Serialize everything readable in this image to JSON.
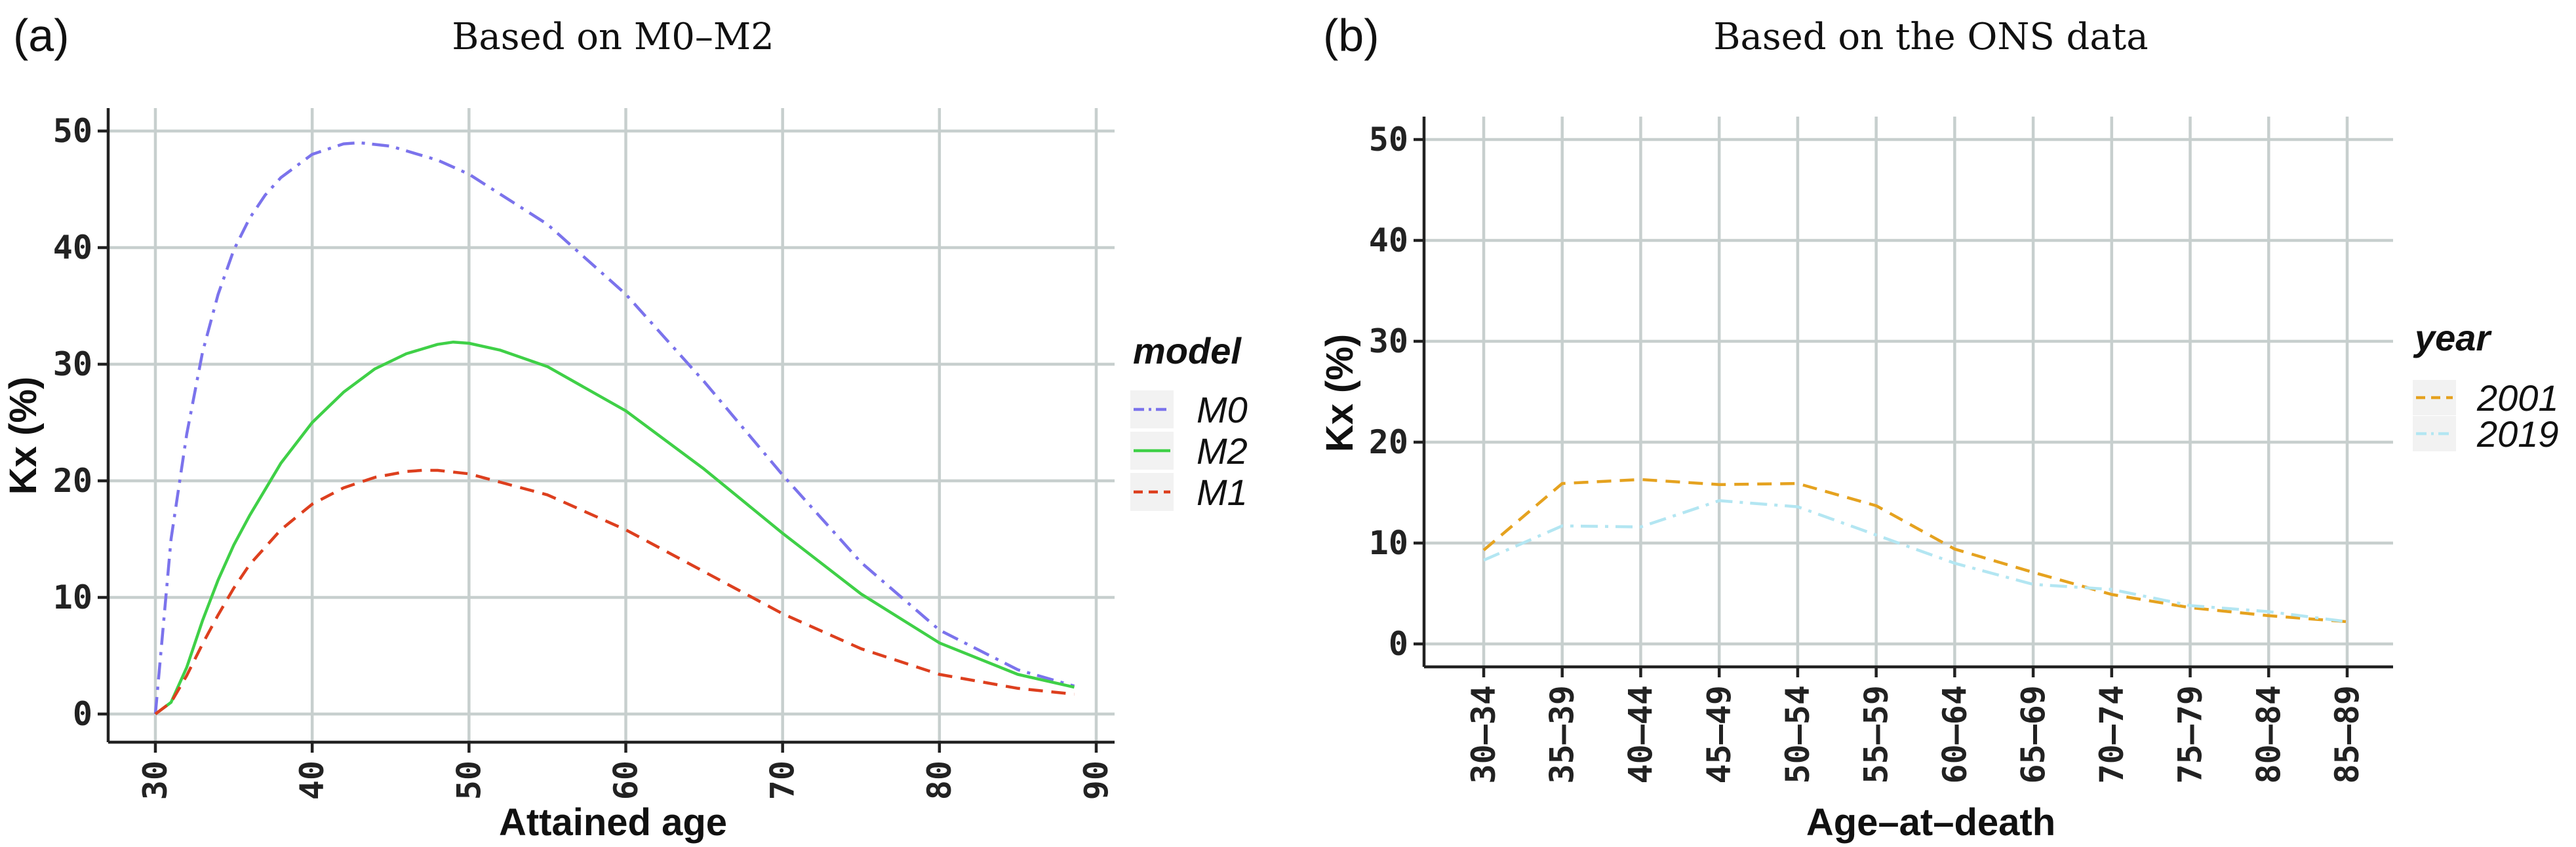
{
  "chart_data": [
    {
      "panel_label": "(a)",
      "type": "line",
      "title": "Based on M0–M2",
      "xlabel": "Attained age",
      "ylabel": "Kx (%)",
      "xlim": [
        30,
        90
      ],
      "ylim": [
        0,
        50
      ],
      "x_ticks": [
        "30",
        "40",
        "50",
        "60",
        "70",
        "80",
        "90"
      ],
      "y_ticks": [
        "0",
        "10",
        "20",
        "30",
        "40",
        "50"
      ],
      "legend": {
        "title": "model",
        "position": "right"
      },
      "series": [
        {
          "name": "M0",
          "color": "#7b73ec",
          "dash": "dashdot",
          "x": [
            30,
            31,
            32,
            33,
            34,
            35,
            36,
            37,
            38,
            40,
            42,
            43,
            45,
            48,
            50,
            55,
            60,
            65,
            70,
            75,
            80,
            85,
            88.6
          ],
          "values": [
            0,
            15,
            24,
            31,
            36,
            39.8,
            42.5,
            44.5,
            46,
            48,
            48.9,
            49,
            48.7,
            47.5,
            46.3,
            42,
            36,
            28.5,
            20.5,
            13,
            7.2,
            3.8,
            2.4
          ]
        },
        {
          "name": "M2",
          "color": "#3fd047",
          "dash": "solid",
          "x": [
            30,
            31,
            32,
            33,
            34,
            35,
            36,
            38,
            40,
            42,
            44,
            46,
            48,
            49,
            50,
            52,
            55,
            60,
            65,
            70,
            75,
            80,
            85,
            88.6
          ],
          "values": [
            0,
            1,
            4,
            8,
            11.5,
            14.5,
            17,
            21.5,
            25,
            27.6,
            29.6,
            30.9,
            31.7,
            31.9,
            31.8,
            31.2,
            29.8,
            26,
            21,
            15.5,
            10.3,
            6.1,
            3.4,
            2.3
          ]
        },
        {
          "name": "M1",
          "color": "#dd3f1e",
          "dash": "dashed",
          "x": [
            30,
            31,
            32,
            33,
            34,
            35,
            36,
            38,
            40,
            42,
            44,
            46,
            47,
            48,
            50,
            55,
            60,
            65,
            70,
            75,
            80,
            85,
            88.6
          ],
          "values": [
            0,
            1,
            3.3,
            6,
            8.5,
            10.8,
            12.8,
            15.8,
            18,
            19.4,
            20.3,
            20.8,
            20.9,
            20.9,
            20.6,
            18.8,
            15.8,
            12.2,
            8.6,
            5.6,
            3.4,
            2.2,
            1.7
          ]
        }
      ]
    },
    {
      "panel_label": "(b)",
      "type": "line",
      "title": "Based on the ONS data",
      "xlabel": "Age–at–death",
      "ylabel": "Kx (%)",
      "categories": [
        "30–34",
        "35–39",
        "40–44",
        "45–49",
        "50–54",
        "55–59",
        "60–64",
        "65–69",
        "70–74",
        "75–79",
        "80–84",
        "85–89"
      ],
      "ylim": [
        0,
        50
      ],
      "y_ticks": [
        "0",
        "10",
        "20",
        "30",
        "40",
        "50"
      ],
      "legend": {
        "title": "year",
        "position": "right"
      },
      "series": [
        {
          "name": "2001",
          "color": "#e5a21f",
          "dash": "dashed",
          "values": [
            9.3,
            15.9,
            16.3,
            15.8,
            15.9,
            13.7,
            9.4,
            7.1,
            4.9,
            3.6,
            2.8,
            2.2
          ]
        },
        {
          "name": "2019",
          "color": "#b3e6f2",
          "dash": "dashdot",
          "values": [
            8.3,
            11.7,
            11.6,
            14.2,
            13.6,
            10.8,
            8,
            5.9,
            5.4,
            3.8,
            3.2,
            2.2
          ]
        }
      ]
    }
  ]
}
